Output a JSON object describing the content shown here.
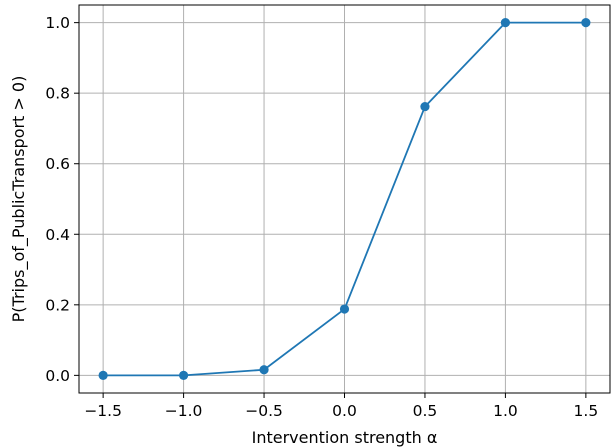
{
  "chart_data": {
    "type": "line",
    "xlabel": "Intervention strength α",
    "ylabel": "P(Trips_of_PublicTransport > 0)",
    "x_ticks": [
      -1.5,
      -1.0,
      -0.5,
      0.0,
      0.5,
      1.0,
      1.5
    ],
    "x_tick_labels": [
      "−1.5",
      "−1.0",
      "−0.5",
      "0.0",
      "0.5",
      "1.0",
      "1.5"
    ],
    "y_ticks": [
      0.0,
      0.2,
      0.4,
      0.6,
      0.8,
      1.0
    ],
    "y_tick_labels": [
      "0.0",
      "0.2",
      "0.4",
      "0.6",
      "0.8",
      "1.0"
    ],
    "xlim": [
      -1.65,
      1.65
    ],
    "ylim": [
      -0.05,
      1.05
    ],
    "grid": true,
    "series": [
      {
        "x": [
          -1.5,
          -1.0,
          -0.5,
          0.0,
          0.5,
          1.0,
          1.5
        ],
        "y": [
          0.0,
          0.0,
          0.016,
          0.188,
          0.762,
          1.0,
          1.0
        ],
        "color": "#1f77b4",
        "marker": "circle"
      }
    ]
  }
}
